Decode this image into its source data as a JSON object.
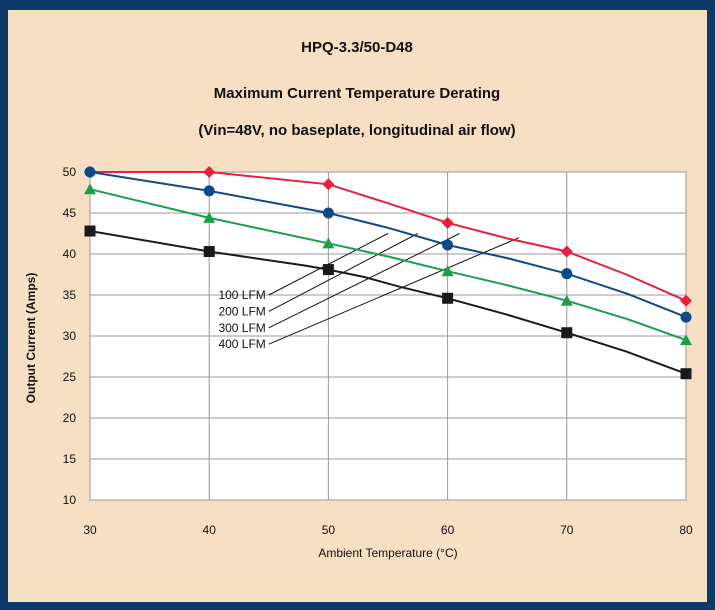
{
  "colors": {
    "frame": "#0d3a68",
    "panel": "#f7dfc4",
    "plot_bg": "#ffffff",
    "grid": "#9a9a9a"
  },
  "chart_data": {
    "type": "line",
    "title": "HPQ-3.3/50-D48",
    "subtitle": "Maximum Current Temperature Derating",
    "subtitle2": "(Vin=48V, no baseplate, longitudinal air flow)",
    "xlabel": "Ambient Temperature (°C)",
    "ylabel": "Output Current (Amps)",
    "xlim": [
      30,
      80
    ],
    "ylim": [
      10,
      50
    ],
    "xticks": [
      30,
      40,
      50,
      60,
      70,
      80
    ],
    "yticks": [
      10,
      15,
      20,
      25,
      30,
      35,
      40,
      45,
      50
    ],
    "grid": true,
    "series": [
      {
        "name": "400 LFM",
        "color": "#e8203a",
        "marker": "diamond",
        "x": [
          30,
          40,
          50,
          60,
          70,
          80
        ],
        "values": [
          50,
          50,
          48.5,
          43.8,
          40.3,
          34.3
        ],
        "path": [
          [
            30,
            50
          ],
          [
            40,
            50
          ],
          [
            50,
            48.5
          ],
          [
            55,
            46.2
          ],
          [
            60,
            43.8
          ],
          [
            65,
            41.9
          ],
          [
            70,
            40.3
          ],
          [
            75,
            37.5
          ],
          [
            80,
            34.3
          ]
        ]
      },
      {
        "name": "300 LFM",
        "color": "#0d4a8c",
        "marker": "circle",
        "x": [
          30,
          40,
          50,
          60,
          70,
          80
        ],
        "values": [
          50,
          47.7,
          45,
          41.1,
          37.6,
          32.3
        ],
        "path": [
          [
            30,
            50
          ],
          [
            40,
            47.7
          ],
          [
            50,
            45
          ],
          [
            55,
            43.2
          ],
          [
            60,
            41.1
          ],
          [
            65,
            39.5
          ],
          [
            70,
            37.6
          ],
          [
            75,
            35.2
          ],
          [
            80,
            32.3
          ]
        ]
      },
      {
        "name": "200 LFM",
        "color": "#1aa04a",
        "marker": "triangle",
        "x": [
          30,
          40,
          50,
          60,
          70,
          80
        ],
        "values": [
          47.9,
          44.4,
          41.3,
          37.9,
          34.3,
          29.5
        ],
        "path": [
          [
            30,
            47.9
          ],
          [
            40,
            44.4
          ],
          [
            50,
            41.3
          ],
          [
            55,
            39.7
          ],
          [
            60,
            37.9
          ],
          [
            65,
            36.2
          ],
          [
            70,
            34.3
          ],
          [
            75,
            32.1
          ],
          [
            80,
            29.5
          ]
        ]
      },
      {
        "name": "100 LFM",
        "color": "#1a1a1a",
        "marker": "square",
        "x": [
          30,
          40,
          50,
          60,
          70,
          80
        ],
        "values": [
          42.8,
          40.3,
          38.1,
          34.6,
          30.4,
          25.4
        ],
        "path": [
          [
            30,
            42.8
          ],
          [
            40,
            40.3
          ],
          [
            48,
            38.6
          ],
          [
            50,
            38.1
          ],
          [
            53,
            37.2
          ],
          [
            56,
            36
          ],
          [
            60,
            34.6
          ],
          [
            65,
            32.6
          ],
          [
            70,
            30.4
          ],
          [
            75,
            28.1
          ],
          [
            80,
            25.4
          ]
        ]
      }
    ],
    "annotations": [
      {
        "text": "100 LFM",
        "label_at": [
          45,
          35.0
        ],
        "line_to": [
          55.0,
          42.5
        ]
      },
      {
        "text": "200 LFM",
        "label_at": [
          45,
          33.0
        ],
        "line_to": [
          57.5,
          42.5
        ]
      },
      {
        "text": "300 LFM",
        "label_at": [
          45,
          31.0
        ],
        "line_to": [
          61.0,
          42.5
        ]
      },
      {
        "text": "400 LFM",
        "label_at": [
          45,
          29.0
        ],
        "line_to": [
          66.0,
          42.0
        ]
      }
    ]
  }
}
